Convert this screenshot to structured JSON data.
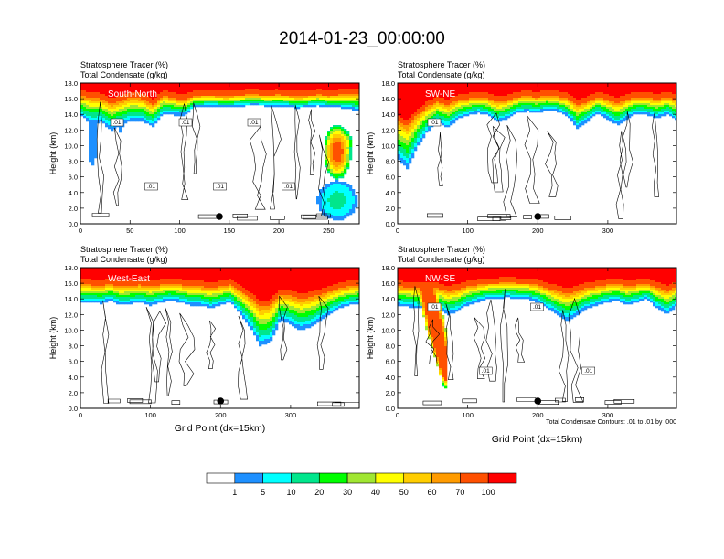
{
  "title": "2014-01-23_00:00:00",
  "colors": [
    "#ffffff",
    "#1e90ff",
    "#00ffff",
    "#00e68c",
    "#00ff00",
    "#a0e632",
    "#ffff00",
    "#ffcd00",
    "#ff9b00",
    "#ff5000",
    "#ff0000"
  ],
  "colorbar": {
    "labels": [
      "1",
      "5",
      "10",
      "20",
      "30",
      "40",
      "50",
      "60",
      "70",
      "100"
    ]
  },
  "contour_note": "Total Condensate Contours: .01 to .01 by .000",
  "chart_data": [
    {
      "type": "heatmap",
      "label": "South-North",
      "subtitle1": "Stratosphere Tracer   (%)",
      "subtitle2": "Total Condensate   (g/kg)",
      "ylabel": "Height (km)",
      "xlabel": "",
      "xlim": [
        0,
        281
      ],
      "ylim": [
        0,
        18
      ],
      "xticks": [
        0,
        50,
        100,
        150,
        200,
        250
      ],
      "yticks": [
        "0.0",
        "2.0",
        "4.0",
        "6.0",
        "8.0",
        "10.0",
        "12.0",
        "14.0",
        "16.0",
        "18.0"
      ],
      "contour_labels": [
        ".01",
        ".01",
        ".01",
        ".01",
        ".01",
        ".01"
      ],
      "marker_x": 140,
      "base": [
        16.4,
        16.1,
        16.0,
        15.4,
        15.8,
        16.2,
        16.0,
        15.2,
        16.4,
        16.1,
        15.8,
        16.4,
        16.4,
        16.4,
        16.3,
        16.4,
        16.5,
        16.5,
        16.4,
        16.5,
        16.4,
        16.3,
        16.4,
        16.5,
        16.4,
        16.5,
        16.5,
        16.5
      ],
      "depth": [
        2.6,
        3.2,
        3.0,
        3.4,
        3.0,
        3.1,
        2.9,
        2.8,
        2.4,
        2.2,
        1.9,
        1.5,
        1.4,
        1.4,
        1.4,
        1.4,
        1.4,
        1.3,
        1.4,
        1.5,
        1.4,
        1.5,
        1.4,
        1.4,
        1.5,
        1.6,
        1.8,
        2.1
      ],
      "blobs": [
        {
          "x": 258,
          "y": 9.2,
          "w": 14,
          "h": 3.5,
          "v": 80
        },
        {
          "x": 264,
          "y": 10.3,
          "w": 9,
          "h": 1.8,
          "v": 55
        },
        {
          "x": 258,
          "y": 3.0,
          "w": 20,
          "h": 2.5,
          "v": 12
        },
        {
          "x": 12,
          "y": 11.0,
          "w": 5,
          "h": 4,
          "v": 3
        },
        {
          "x": 40,
          "y": 13.5,
          "w": 4,
          "h": 2,
          "v": 3
        }
      ]
    },
    {
      "type": "heatmap",
      "label": "SW-NE",
      "subtitle1": "Stratosphere Tracer   (%)",
      "subtitle2": "Total Condensate   (g/kg)",
      "ylabel": "Height (km)",
      "xlabel": "",
      "xlim": [
        0,
        398
      ],
      "ylim": [
        0,
        18
      ],
      "xticks": [
        0,
        100,
        200,
        300
      ],
      "yticks": [
        "0.0",
        "2.0",
        "4.0",
        "6.0",
        "8.0",
        "10.0",
        "12.0",
        "14.0",
        "16.0",
        "18.0"
      ],
      "contour_labels": [
        ".01"
      ],
      "marker_x": 200,
      "base": [
        13.2,
        12.5,
        14.0,
        15.0,
        15.6,
        15.2,
        15.8,
        16.0,
        16.2,
        16.0,
        15.6,
        15.8,
        16.2,
        16.3,
        16.2,
        16.4,
        16.3,
        16.0,
        15.2,
        15.6,
        16.2,
        15.8,
        15.4,
        15.9,
        16.2,
        16.1,
        15.9,
        16.2,
        15.8
      ],
      "depth": [
        4.8,
        5.5,
        4.0,
        3.2,
        2.6,
        3.0,
        2.4,
        2.2,
        2.0,
        2.1,
        2.6,
        2.3,
        1.9,
        1.9,
        2.0,
        1.8,
        1.9,
        2.2,
        3.0,
        2.5,
        2.0,
        2.4,
        2.8,
        2.4,
        2.1,
        2.2,
        2.4,
        2.2,
        2.6
      ],
      "blobs": []
    },
    {
      "type": "heatmap",
      "label": "West-East",
      "subtitle1": "Stratosphere Tracer   (%)",
      "subtitle2": "Total Condensate   (g/kg)",
      "ylabel": "Height (km)",
      "xlabel": "Grid Point (dx=15km)",
      "xlim": [
        0,
        398
      ],
      "ylim": [
        0,
        18
      ],
      "xticks": [
        0,
        100,
        200,
        300
      ],
      "yticks": [
        "0.0",
        "2.0",
        "4.0",
        "6.0",
        "8.0",
        "10.0",
        "12.0",
        "14.0",
        "16.0",
        "18.0"
      ],
      "contour_labels": [],
      "marker_x": 200,
      "base": [
        15.8,
        15.8,
        15.7,
        15.9,
        15.6,
        15.7,
        15.8,
        15.6,
        15.8,
        15.9,
        15.8,
        15.6,
        15.6,
        15.4,
        15.6,
        15.8,
        15.0,
        14.2,
        13.0,
        13.2,
        14.6,
        14.4,
        14.0,
        14.2,
        14.6,
        15.0,
        15.4,
        15.6,
        15.7
      ],
      "depth": [
        2.2,
        2.2,
        2.3,
        2.1,
        2.4,
        2.3,
        2.2,
        2.4,
        2.2,
        2.1,
        2.2,
        2.4,
        2.4,
        2.6,
        2.4,
        2.2,
        3.0,
        3.8,
        5.0,
        4.8,
        3.4,
        3.6,
        4.0,
        3.8,
        3.4,
        3.0,
        2.6,
        2.4,
        2.3
      ],
      "blobs": [
        {
          "x": 40,
          "y": 16.6,
          "w": 18,
          "h": 0.7,
          "v": 80
        }
      ]
    },
    {
      "type": "heatmap",
      "label": "NW-SE",
      "subtitle1": "Stratosphere Tracer   (%)",
      "subtitle2": "Total Condensate   (g/kg)",
      "ylabel": "Height (km)",
      "xlabel": "Grid Point (dx=15km)",
      "xlim": [
        0,
        398
      ],
      "ylim": [
        0,
        18
      ],
      "xticks": [
        0,
        100,
        200,
        300
      ],
      "yticks": [
        "0.0",
        "2.0",
        "4.0",
        "6.0",
        "8.0",
        "10.0",
        "12.0",
        "14.0",
        "16.0",
        "18.0"
      ],
      "contour_labels": [
        ".01",
        ".01",
        ".01",
        ".01"
      ],
      "marker_x": 200,
      "base": [
        15.6,
        15.5,
        15.4,
        15.5,
        15.4,
        15.0,
        15.2,
        15.6,
        15.8,
        16.0,
        16.0,
        16.1,
        16.0,
        16.0,
        15.8,
        15.4,
        15.0,
        14.6,
        15.0,
        15.4,
        15.6,
        15.8,
        15.9,
        15.6,
        15.8,
        16.0,
        15.4,
        15.0,
        15.6
      ],
      "depth": [
        2.4,
        2.5,
        2.6,
        2.5,
        2.6,
        3.0,
        2.8,
        2.4,
        2.2,
        2.0,
        2.0,
        1.9,
        2.0,
        2.0,
        2.2,
        2.6,
        3.0,
        3.4,
        3.0,
        2.6,
        2.4,
        2.2,
        2.1,
        2.4,
        2.2,
        2.0,
        2.6,
        3.0,
        2.4
      ],
      "blobs": []
    }
  ]
}
